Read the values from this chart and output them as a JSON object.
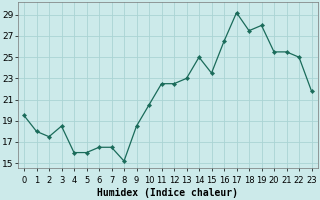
{
  "x": [
    0,
    1,
    2,
    3,
    4,
    5,
    6,
    7,
    8,
    9,
    10,
    11,
    12,
    13,
    14,
    15,
    16,
    17,
    18,
    19,
    20,
    21,
    22,
    23
  ],
  "y": [
    19.5,
    18.0,
    17.5,
    18.5,
    16.0,
    16.0,
    16.5,
    16.5,
    15.2,
    18.5,
    20.5,
    22.5,
    22.5,
    23.0,
    25.0,
    23.5,
    26.5,
    29.2,
    27.5,
    28.0,
    25.5,
    25.5,
    25.0,
    21.8
  ],
  "xlabel": "Humidex (Indice chaleur)",
  "ylabel": "",
  "xlim": [
    -0.5,
    23.5
  ],
  "ylim": [
    14.5,
    30.2
  ],
  "yticks": [
    15,
    17,
    19,
    21,
    23,
    25,
    27,
    29
  ],
  "xtick_labels": [
    "0",
    "1",
    "2",
    "3",
    "4",
    "5",
    "6",
    "7",
    "8",
    "9",
    "10",
    "11",
    "12",
    "13",
    "14",
    "15",
    "16",
    "17",
    "18",
    "19",
    "20",
    "21",
    "22",
    "23"
  ],
  "line_color": "#1a6b5a",
  "marker_color": "#1a6b5a",
  "bg_color": "#cceaea",
  "grid_color": "#aad4d4",
  "label_fontsize": 7,
  "tick_fontsize": 6.5
}
